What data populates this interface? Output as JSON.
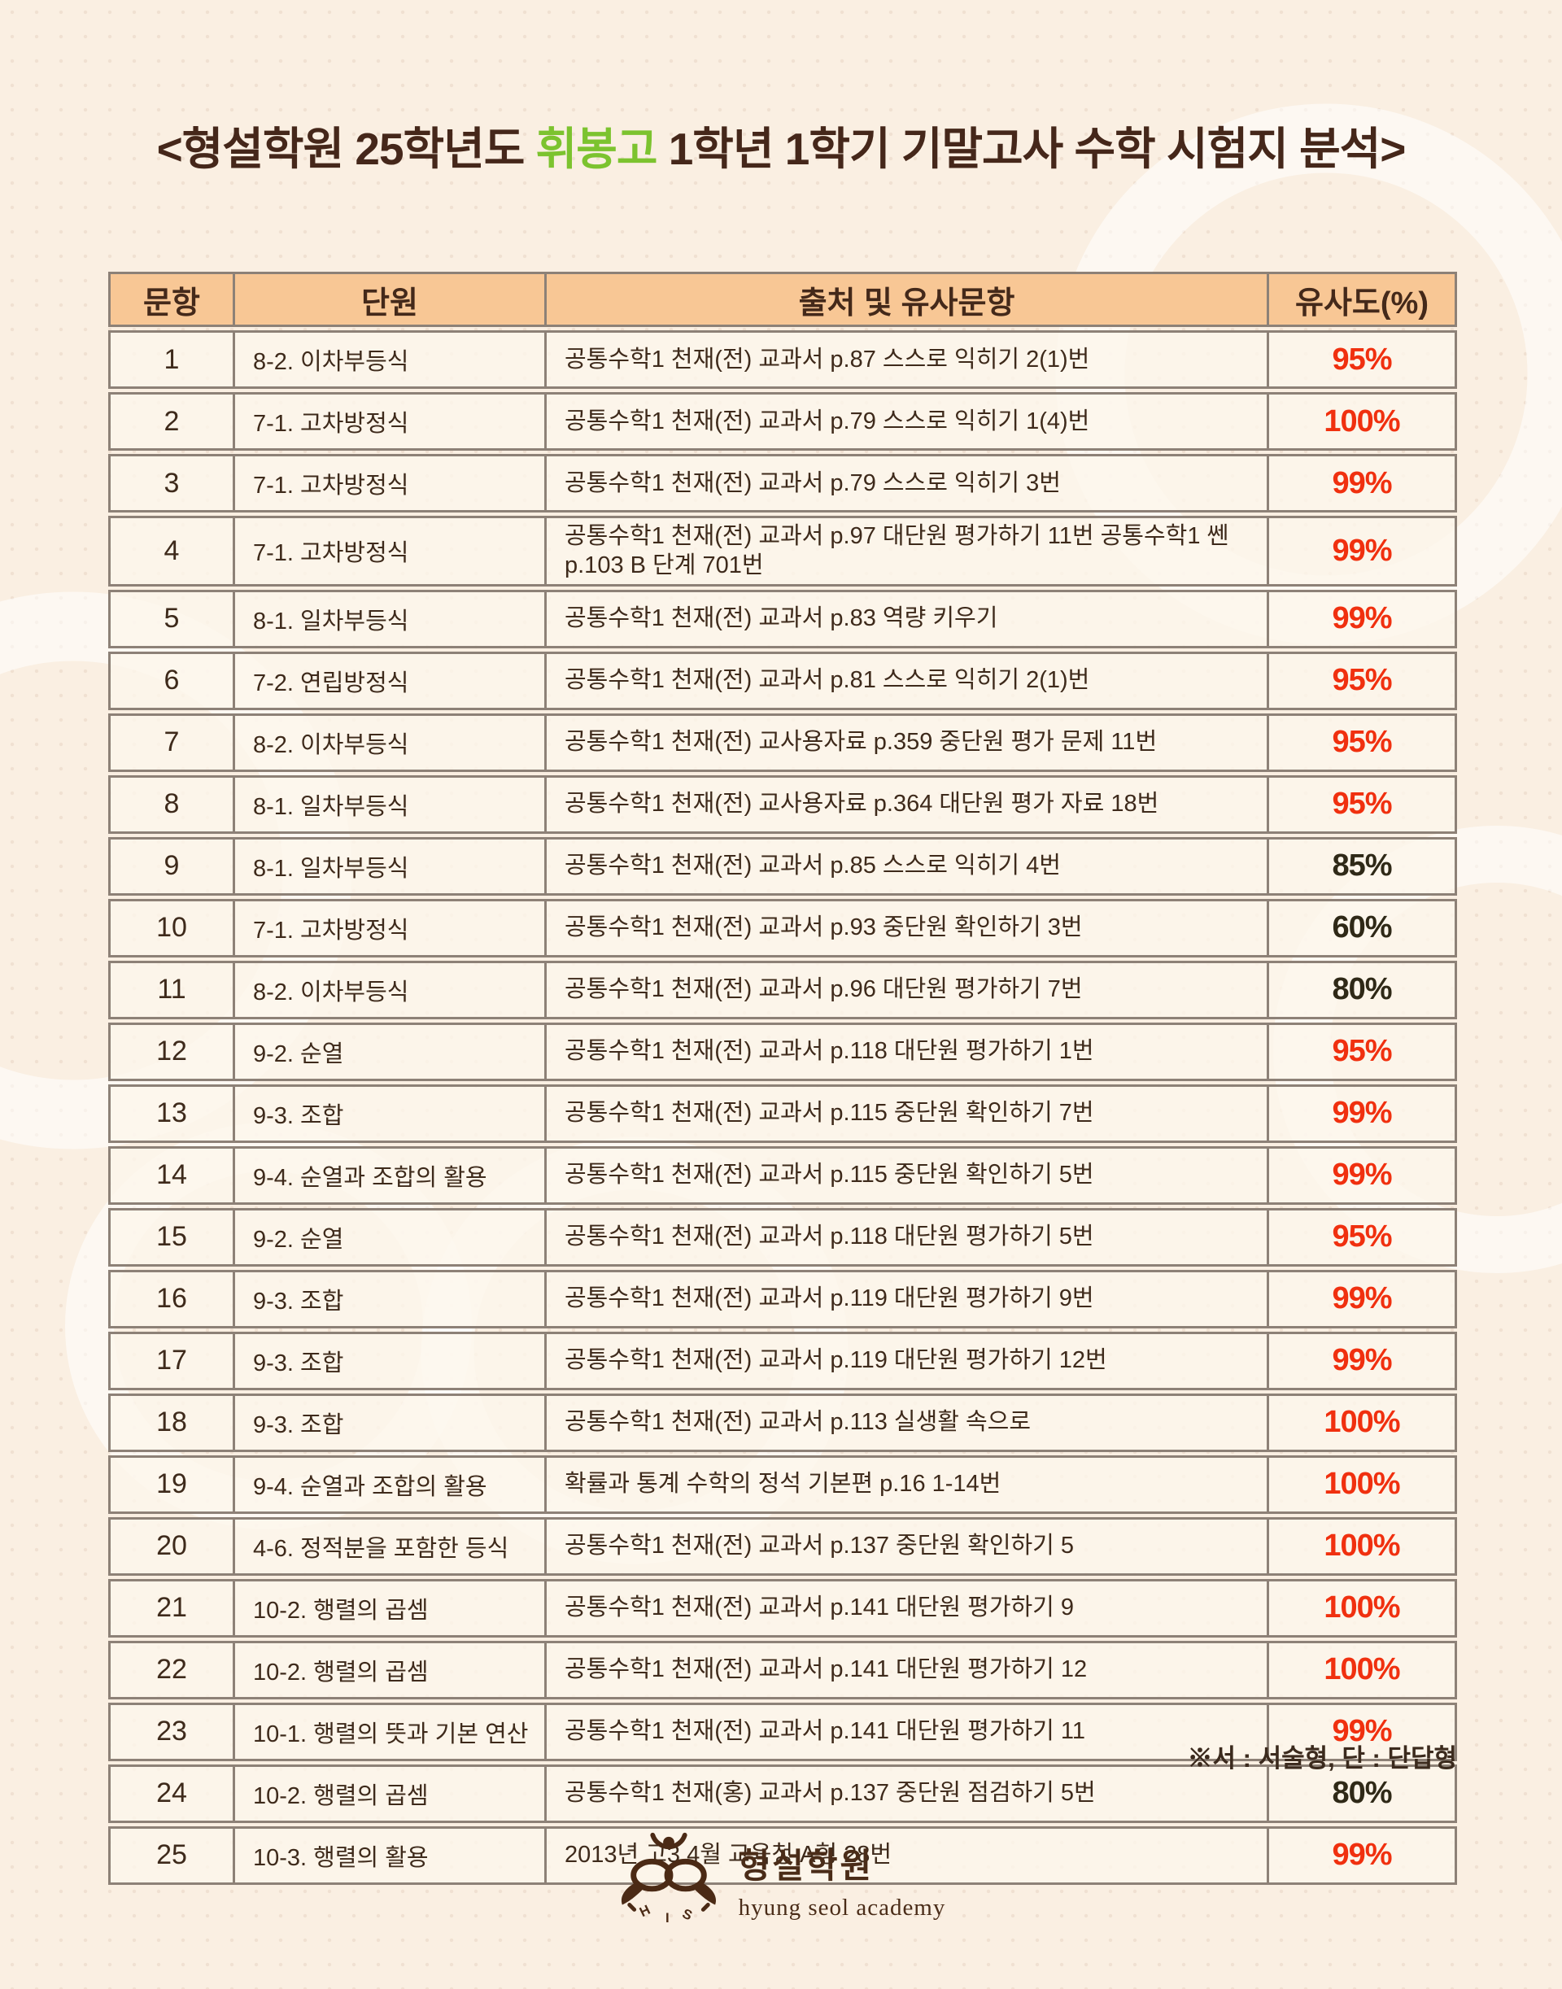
{
  "title": {
    "prefix": "<형설학원 25학년도 ",
    "highlight": "휘봉고",
    "suffix": " 1학년 1학기 기말고사 수학 시험지 분석>"
  },
  "table": {
    "headers": [
      "문항",
      "단원",
      "출처 및 유사문항",
      "유사도(%)"
    ],
    "rows": [
      {
        "no": "1",
        "unit": "8-2. 이차부등식",
        "source": "공통수학1 천재(전) 교과서 p.87 스스로 익히기 2(1)번",
        "similarity": "95%"
      },
      {
        "no": "2",
        "unit": "7-1. 고차방정식",
        "source": "공통수학1 천재(전) 교과서 p.79 스스로 익히기 1(4)번",
        "similarity": "100%"
      },
      {
        "no": "3",
        "unit": "7-1. 고차방정식",
        "source": "공통수학1 천재(전) 교과서 p.79 스스로 익히기 3번",
        "similarity": "99%"
      },
      {
        "no": "4",
        "unit": "7-1. 고차방정식",
        "source": "공통수학1 천재(전) 교과서 p.97 대단원 평가하기 11번 공통수학1 쎈 p.103 B 단계 701번",
        "similarity": "99%"
      },
      {
        "no": "5",
        "unit": "8-1. 일차부등식",
        "source": "공통수학1 천재(전) 교과서 p.83 역량 키우기",
        "similarity": "99%"
      },
      {
        "no": "6",
        "unit": "7-2. 연립방정식",
        "source": "공통수학1 천재(전) 교과서 p.81 스스로 익히기 2(1)번",
        "similarity": "95%"
      },
      {
        "no": "7",
        "unit": "8-2. 이차부등식",
        "source": "공통수학1 천재(전) 교사용자료 p.359 중단원 평가 문제 11번",
        "similarity": "95%"
      },
      {
        "no": "8",
        "unit": "8-1. 일차부등식",
        "source": "공통수학1 천재(전) 교사용자료 p.364 대단원 평가 자료 18번",
        "similarity": "95%"
      },
      {
        "no": "9",
        "unit": "8-1. 일차부등식",
        "source": "공통수학1 천재(전) 교과서 p.85 스스로 익히기 4번",
        "similarity": "85%"
      },
      {
        "no": "10",
        "unit": "7-1. 고차방정식",
        "source": "공통수학1 천재(전) 교과서 p.93 중단원 확인하기 3번",
        "similarity": "60%"
      },
      {
        "no": "11",
        "unit": "8-2. 이차부등식",
        "source": "공통수학1 천재(전) 교과서 p.96 대단원 평가하기 7번",
        "similarity": "80%"
      },
      {
        "no": "12",
        "unit": "9-2. 순열",
        "source": "공통수학1 천재(전) 교과서 p.118 대단원 평가하기 1번",
        "similarity": "95%"
      },
      {
        "no": "13",
        "unit": "9-3. 조합",
        "source": "공통수학1 천재(전) 교과서 p.115 중단원 확인하기 7번",
        "similarity": "99%"
      },
      {
        "no": "14",
        "unit": "9-4. 순열과 조합의 활용",
        "source": "공통수학1 천재(전) 교과서 p.115 중단원 확인하기 5번",
        "similarity": "99%"
      },
      {
        "no": "15",
        "unit": "9-2. 순열",
        "source": "공통수학1 천재(전) 교과서 p.118 대단원 평가하기 5번",
        "similarity": "95%"
      },
      {
        "no": "16",
        "unit": "9-3. 조합",
        "source": "공통수학1 천재(전) 교과서 p.119 대단원 평가하기 9번",
        "similarity": "99%"
      },
      {
        "no": "17",
        "unit": "9-3. 조합",
        "source": "공통수학1 천재(전) 교과서 p.119 대단원 평가하기 12번",
        "similarity": "99%"
      },
      {
        "no": "18",
        "unit": "9-3. 조합",
        "source": "공통수학1 천재(전) 교과서 p.113 실생활 속으로",
        "similarity": "100%"
      },
      {
        "no": "19",
        "unit": "9-4. 순열과 조합의 활용",
        "source": "확률과 통계 수학의 정석 기본편 p.16 1-14번",
        "similarity": "100%"
      },
      {
        "no": "20",
        "unit": "4-6. 정적분을 포함한 등식",
        "source": "공통수학1 천재(전) 교과서 p.137 중단원 확인하기 5",
        "similarity": "100%"
      },
      {
        "no": "21",
        "unit": "10-2. 행렬의 곱셈",
        "source": "공통수학1 천재(전) 교과서 p.141 대단원 평가하기 9",
        "similarity": "100%"
      },
      {
        "no": "22",
        "unit": "10-2. 행렬의 곱셈",
        "source": "공통수학1 천재(전) 교과서 p.141 대단원 평가하기 12",
        "similarity": "100%"
      },
      {
        "no": "23",
        "unit": "10-1. 행렬의 뜻과 기본 연산",
        "source": "공통수학1 천재(전) 교과서 p.141 대단원 평가하기 11",
        "similarity": "99%"
      },
      {
        "no": "24",
        "unit": "10-2. 행렬의 곱셈",
        "source": "공통수학1 천재(홍) 교과서 p.137 중단원 점검하기 5번",
        "similarity": "80%"
      },
      {
        "no": "25",
        "unit": "10-3. 행렬의 활용",
        "source": "2013년 고3 4월 교육청 A형 28번",
        "similarity": "99%"
      }
    ]
  },
  "note": "※서 : 서술형, 단 : 단답형",
  "brand": {
    "name_ko": "형설학원",
    "name_en": "hyung seol academy"
  },
  "colors": {
    "background": "#faefe2",
    "header_bg": "#f8c795",
    "border": "#8d8177",
    "title_brown": "#45271a",
    "accent_green": "#7cc32f",
    "similarity_high_red": "#f0300f",
    "similarity_low_dark": "#2f2917"
  }
}
